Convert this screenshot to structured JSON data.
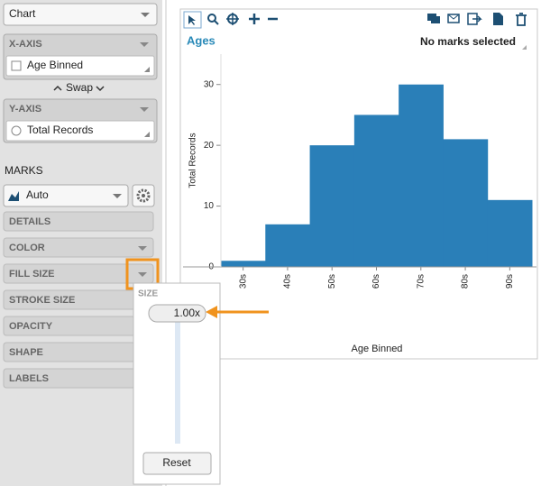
{
  "sidebar": {
    "chart_type": "Chart",
    "x_axis": {
      "header": "X-AXIS",
      "field": "Age Binned"
    },
    "swap": "Swap",
    "y_axis": {
      "header": "Y-AXIS",
      "field": "Total Records"
    },
    "marks": {
      "header": "MARKS",
      "mark_type": "Auto",
      "properties": [
        "DETAILS",
        "COLOR",
        "FILL SIZE",
        "STROKE SIZE",
        "OPACITY",
        "SHAPE",
        "LABELS"
      ]
    }
  },
  "popup": {
    "header": "SIZE",
    "value": "1.00x",
    "button": "Reset"
  },
  "chart_panel": {
    "status": "No marks selected"
  },
  "chart_data": {
    "type": "bar",
    "title": "Ages",
    "x_label": "Age Binned",
    "y_label": "Total Records",
    "categories": [
      "30s",
      "40s",
      "50s",
      "60s",
      "70s",
      "80s",
      "90s"
    ],
    "values": [
      1,
      7,
      20,
      25,
      30,
      21,
      11
    ],
    "color": "#2a7fb8",
    "ylim": [
      0,
      35
    ],
    "yticks": [
      0,
      10,
      20,
      30
    ]
  }
}
